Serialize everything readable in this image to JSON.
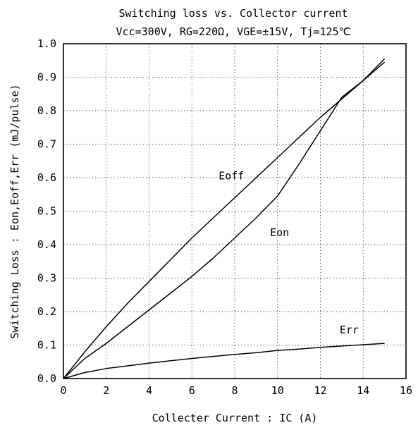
{
  "chart_data": {
    "type": "line",
    "title": "Switching loss vs. Collector current",
    "subtitle": "Vcc=300V, RG=220Ω, VGE=±15V, Tj=125℃",
    "xlabel": "Collecter Current  :  IC  (A)",
    "ylabel": "Switching Loss  :  Eon,Eoff,Err (mJ/pulse)",
    "xlim": [
      0,
      16
    ],
    "ylim": [
      0,
      1.0
    ],
    "x_ticks": [
      "0",
      "2",
      "4",
      "6",
      "8",
      "10",
      "12",
      "14",
      "16"
    ],
    "y_ticks": [
      "0.0",
      "0.1",
      "0.2",
      "0.3",
      "0.4",
      "0.5",
      "0.6",
      "0.7",
      "0.8",
      "0.9",
      "1.0"
    ],
    "grid": true,
    "series": [
      {
        "name": "Eoff",
        "x": [
          0,
          1,
          2,
          3,
          4,
          5,
          6,
          7,
          8,
          9,
          10,
          11,
          12,
          13,
          14,
          15
        ],
        "y": [
          0.0,
          0.08,
          0.155,
          0.225,
          0.29,
          0.355,
          0.42,
          0.48,
          0.54,
          0.6,
          0.66,
          0.72,
          0.78,
          0.835,
          0.89,
          0.955
        ]
      },
      {
        "name": "Eon",
        "x": [
          0,
          1,
          2,
          3,
          4,
          5,
          6,
          7,
          8,
          9,
          10,
          11,
          12,
          13,
          14,
          15
        ],
        "y": [
          0.0,
          0.06,
          0.105,
          0.155,
          0.205,
          0.255,
          0.305,
          0.36,
          0.42,
          0.48,
          0.545,
          0.64,
          0.74,
          0.84,
          0.89,
          0.945
        ]
      },
      {
        "name": "Err",
        "x": [
          0,
          1,
          2,
          3,
          4,
          5,
          6,
          7,
          8,
          9,
          10,
          11,
          12,
          13,
          14,
          15
        ],
        "y": [
          0.0,
          0.018,
          0.03,
          0.038,
          0.046,
          0.053,
          0.06,
          0.066,
          0.072,
          0.077,
          0.084,
          0.088,
          0.093,
          0.097,
          0.101,
          0.105
        ]
      }
    ],
    "annotations": [
      {
        "text": "Eoff",
        "series": "Eoff"
      },
      {
        "text": "Eon",
        "series": "Eon"
      },
      {
        "text": "Err",
        "series": "Err"
      }
    ]
  }
}
